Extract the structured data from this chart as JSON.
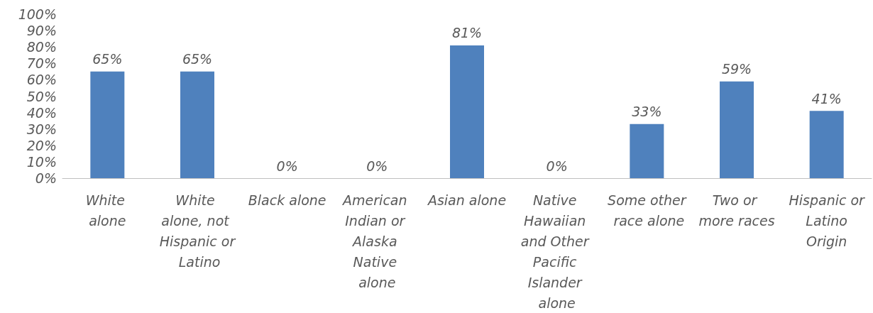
{
  "chart_data": {
    "type": "bar",
    "categories": [
      "White alone",
      "White alone, not Hispanic or Latino",
      "Black alone",
      "American Indian or Alaska Native alone",
      "Asian alone",
      "Native Hawaiian and Other Pacific Islander alone",
      "Some other race alone",
      "Two or more races",
      "Hispanic or Latino Origin"
    ],
    "values": [
      65,
      65,
      0,
      0,
      81,
      0,
      33,
      59,
      41
    ],
    "value_labels": [
      "65%",
      "65%",
      "0%",
      "0%",
      "81%",
      "0%",
      "33%",
      "59%",
      "41%"
    ],
    "color": "#4f81bd",
    "ylim": [
      0,
      100
    ],
    "yticks": [
      {
        "value": 0,
        "label": "0%"
      },
      {
        "value": 10,
        "label": "10%"
      },
      {
        "value": 20,
        "label": "20%"
      },
      {
        "value": 30,
        "label": "30%"
      },
      {
        "value": 40,
        "label": "40%"
      },
      {
        "value": 50,
        "label": "50%"
      },
      {
        "value": 60,
        "label": "60%"
      },
      {
        "value": 70,
        "label": "70%"
      },
      {
        "value": 80,
        "label": "80%"
      },
      {
        "value": 90,
        "label": "90%"
      },
      {
        "value": 100,
        "label": "100%"
      }
    ],
    "grid": false
  }
}
